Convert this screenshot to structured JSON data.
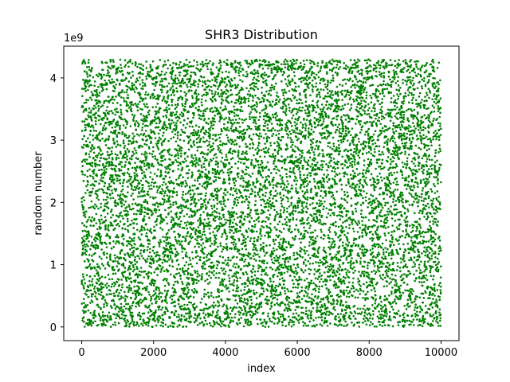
{
  "chart_data": {
    "type": "scatter",
    "title": "SHR3 Distribution",
    "xlabel": "index",
    "ylabel": "random number",
    "y_offset_label": "1e9",
    "xlim": [
      -500,
      10500
    ],
    "ylim": [
      -220000000,
      4510000000
    ],
    "x_ticks": [
      0,
      2000,
      4000,
      6000,
      8000,
      10000
    ],
    "x_tick_labels": [
      "0",
      "2000",
      "4000",
      "6000",
      "8000",
      "10000"
    ],
    "y_ticks": [
      0,
      1000000000,
      2000000000,
      3000000000,
      4000000000
    ],
    "y_tick_labels": [
      "0",
      "1",
      "2",
      "3",
      "4"
    ],
    "grid": false,
    "marker_color": "#008000",
    "series": [
      {
        "n_points": 10000,
        "x_range": [
          0,
          10000
        ],
        "y_range": [
          0,
          4294967295
        ],
        "distribution": "uniform"
      }
    ]
  }
}
